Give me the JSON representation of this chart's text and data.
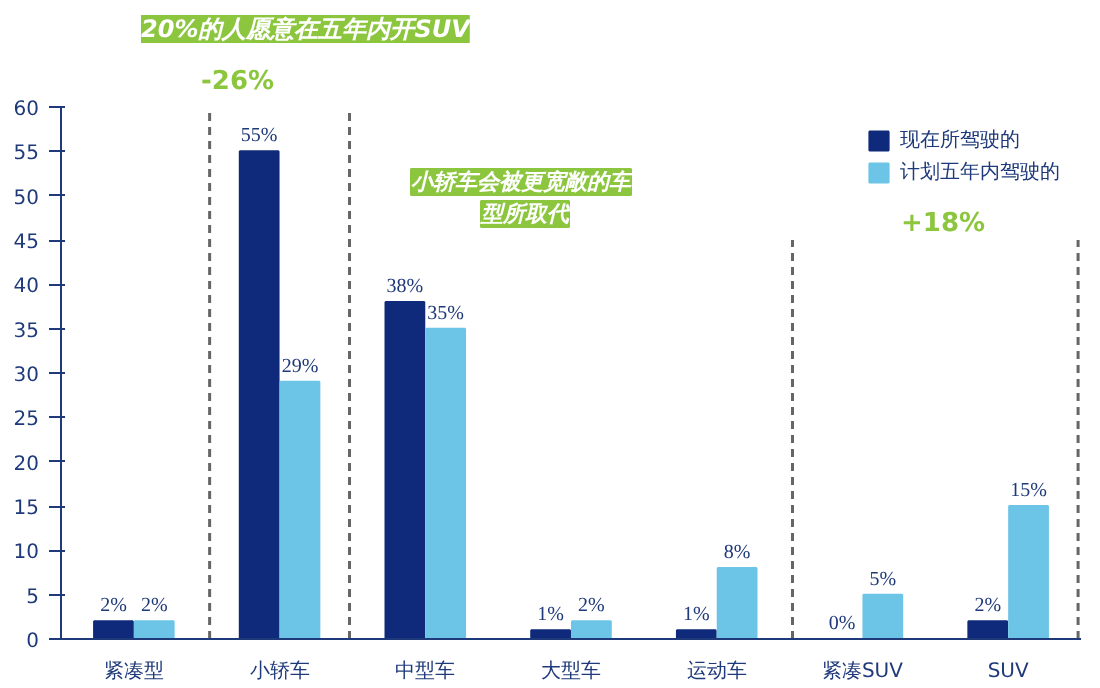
{
  "chart_data": {
    "type": "bar",
    "categories": [
      "紧凑型",
      "小轿车",
      "中型车",
      "大型车",
      "运动车",
      "紧凑SUV",
      "SUV"
    ],
    "series": [
      {
        "name": "现在所驾驶的",
        "color": "#0f2a7a",
        "values": [
          2,
          55,
          38,
          1,
          1,
          0,
          2
        ],
        "value_labels": [
          "2%",
          "55%",
          "38%",
          "1%",
          "1%",
          "0%",
          "2%"
        ]
      },
      {
        "name": "计划五年内驾驶的",
        "color": "#6cc4e6",
        "values": [
          2,
          29,
          35,
          2,
          8,
          5,
          15
        ],
        "value_labels": [
          "2%",
          "29%",
          "35%",
          "2%",
          "8%",
          "5%",
          "15%"
        ]
      }
    ],
    "ylim": [
      0,
      60
    ],
    "yticks": [
      0,
      5,
      10,
      15,
      20,
      25,
      30,
      35,
      40,
      45,
      50,
      55,
      60
    ],
    "legend": "top right",
    "annotations": [
      "20%的人愿意在五年内开SUV",
      "-26%",
      "小轿车会被更宽敞的车型所取代",
      "+18%"
    ]
  }
}
